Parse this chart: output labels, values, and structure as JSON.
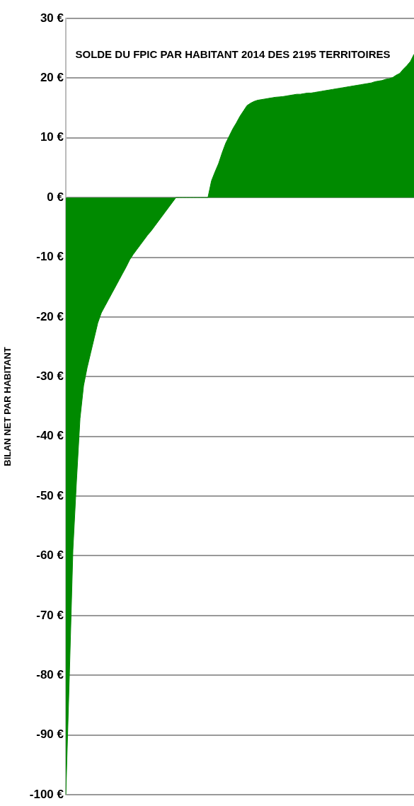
{
  "chart_data": {
    "type": "area",
    "title": "SOLDE DU FPIC PAR HABITANT 2014 DES 2195 TERRITOIRES",
    "ylabel": "BILAN NET PAR HABITANT",
    "categories": [
      null,
      null,
      null,
      null,
      null,
      null,
      null,
      null,
      null,
      null,
      null,
      null,
      null,
      null,
      null,
      null,
      null,
      null,
      null,
      null,
      null,
      null,
      null,
      null,
      null,
      null,
      null,
      null,
      null,
      null,
      null,
      null,
      null,
      null,
      null,
      null,
      null,
      null,
      null,
      null,
      null,
      null,
      null,
      null,
      null,
      null,
      null,
      null,
      null,
      null,
      null,
      null,
      null,
      null,
      null,
      null,
      null,
      null,
      null,
      null,
      null,
      null,
      null,
      null,
      null,
      null,
      null,
      null,
      null,
      null,
      null,
      null,
      null,
      null,
      null,
      null,
      null,
      null,
      null,
      null,
      null,
      null,
      null,
      null,
      null,
      null,
      null,
      null,
      null,
      null,
      null,
      null,
      null,
      null,
      null,
      null,
      null,
      null,
      null
    ],
    "values": [
      -100,
      -80,
      -59,
      -47.5,
      -37,
      -31.5,
      -28.5,
      -26,
      -23.5,
      -21,
      -19.3,
      -18.2,
      -17.1,
      -16,
      -14.9,
      -13.8,
      -12.7,
      -11.6,
      -10.4,
      -9.5,
      -8.7,
      -7.9,
      -7.1,
      -6.3,
      -5.6,
      -4.8,
      -4,
      -3.2,
      -2.4,
      -1.6,
      -0.8,
      0,
      0,
      0,
      0,
      0,
      0,
      0,
      0,
      0,
      0,
      2.8,
      4.3,
      5.7,
      7.5,
      9.1,
      10.3,
      11.5,
      12.5,
      13.6,
      14.5,
      15.4,
      15.8,
      16.1,
      16.3,
      16.4,
      16.5,
      16.6,
      16.7,
      16.8,
      16.85,
      16.9,
      17,
      17.1,
      17.2,
      17.3,
      17.3,
      17.4,
      17.5,
      17.5,
      17.6,
      17.7,
      17.8,
      17.9,
      18,
      18.1,
      18.2,
      18.3,
      18.4,
      18.5,
      18.6,
      18.7,
      18.8,
      18.9,
      19,
      19.1,
      19.2,
      19.4,
      19.5,
      19.6,
      19.8,
      19.9,
      20.1,
      20.5,
      20.8,
      21.5,
      22.1,
      22.8,
      24
    ],
    "color": "#008a00",
    "ylim": [
      -100,
      30
    ],
    "yticks": [
      {
        "value": 30,
        "label": "30 €"
      },
      {
        "value": 20,
        "label": "20 €"
      },
      {
        "value": 10,
        "label": "10 €"
      },
      {
        "value": 0,
        "label": "0 €"
      },
      {
        "value": -10,
        "label": "-10 €"
      },
      {
        "value": -20,
        "label": "-20 €"
      },
      {
        "value": -30,
        "label": "-30 €"
      },
      {
        "value": -40,
        "label": "-40 €"
      },
      {
        "value": -50,
        "label": "-50 €"
      },
      {
        "value": -60,
        "label": "-60 €"
      },
      {
        "value": -70,
        "label": "-70 €"
      },
      {
        "value": -80,
        "label": "-80 €"
      },
      {
        "value": -90,
        "label": "-90 €"
      },
      {
        "value": -100,
        "label": "-100 €"
      }
    ],
    "grid": "y",
    "tick_labels": "y"
  }
}
